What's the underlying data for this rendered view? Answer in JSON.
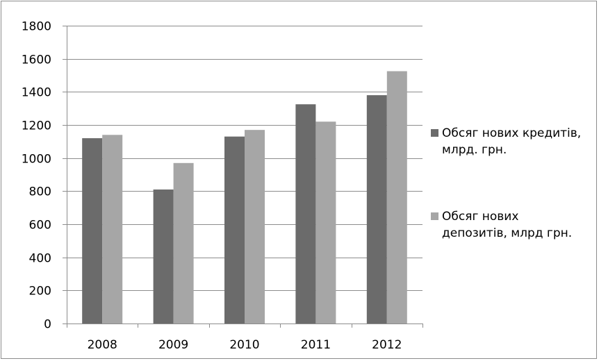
{
  "chart_data": {
    "type": "bar",
    "title": "",
    "xlabel": "",
    "ylabel": "",
    "categories": [
      "2008",
      "2009",
      "2010",
      "2011",
      "2012"
    ],
    "series": [
      {
        "name": "Обсяг нових кредитів,\nмлрд. грн.",
        "values": [
          1120,
          810,
          1130,
          1325,
          1380
        ],
        "color": "#6b6b6b"
      },
      {
        "name": "Обсяг нових\nдепозитів, млрд грн.",
        "values": [
          1140,
          970,
          1170,
          1220,
          1525
        ],
        "color": "#a6a6a6"
      }
    ],
    "ylim": [
      0,
      1800
    ],
    "yticks": [
      0,
      200,
      400,
      600,
      800,
      1000,
      1200,
      1400,
      1600,
      1800
    ],
    "grid": true,
    "legend_position": "right"
  }
}
